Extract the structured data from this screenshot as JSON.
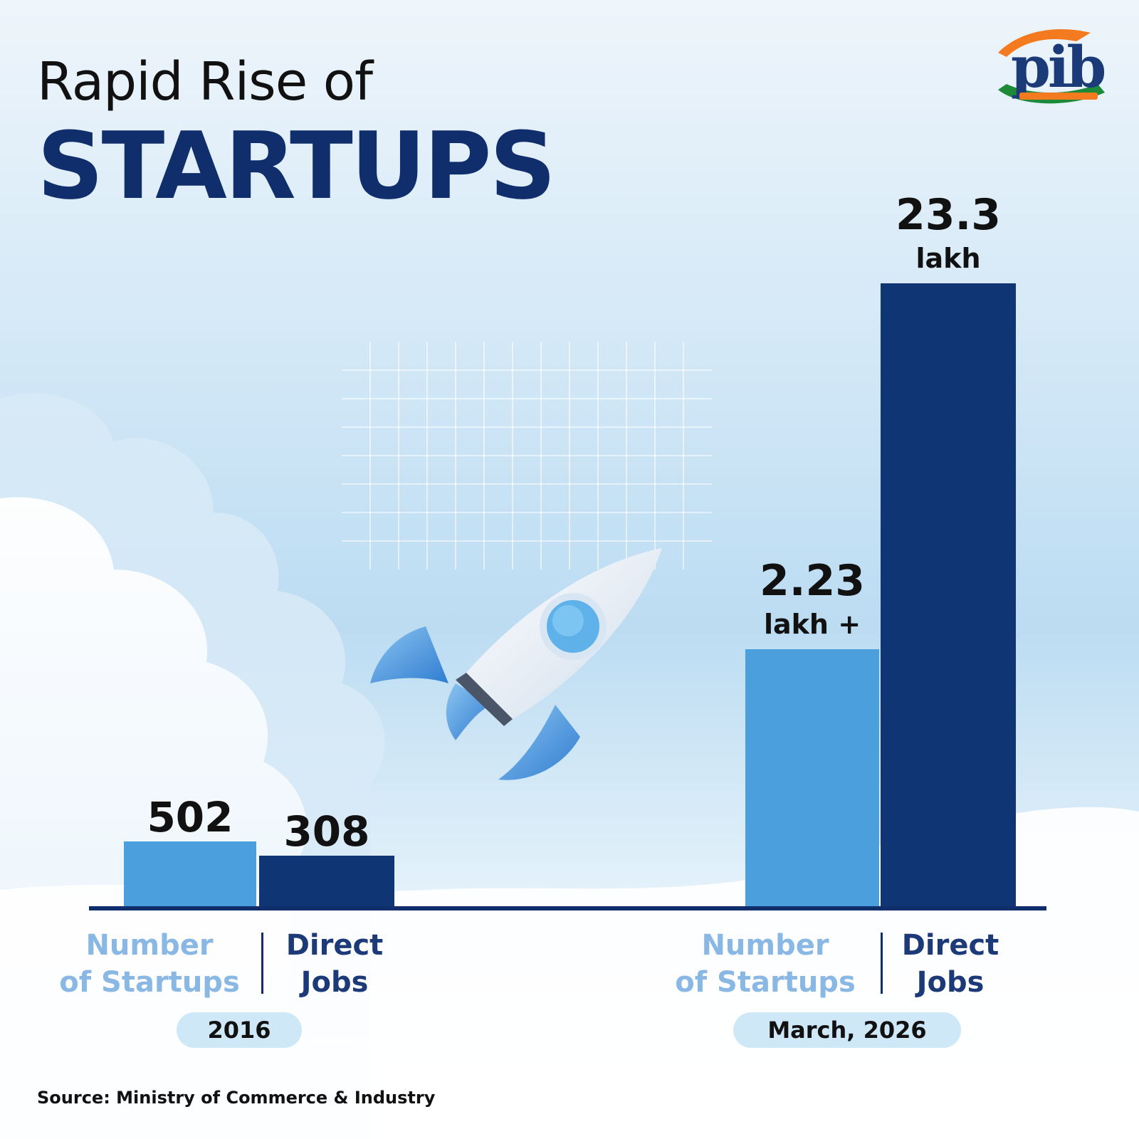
{
  "header": {
    "title_line1": "Rapid Rise of",
    "title_line2": "STARTUPS"
  },
  "logo": {
    "text": "pib",
    "colors": [
      "#f47a20",
      "#ffffff",
      "#1d8a3a",
      "#1a3a78"
    ]
  },
  "chart_data": {
    "type": "bar",
    "groups": [
      "2016",
      "March, 2026"
    ],
    "series": [
      {
        "name": "Number of Startups",
        "color": "#4a9fdc"
      },
      {
        "name": "Direct Jobs",
        "color": "#0f3575"
      }
    ],
    "bars": [
      {
        "group": "2016",
        "series": "Number of Startups",
        "value": 502,
        "label": "502"
      },
      {
        "group": "2016",
        "series": "Direct Jobs",
        "value": 308,
        "label": "308"
      },
      {
        "group": "March, 2026",
        "series": "Number of Startups",
        "value": 223000,
        "label": "2.23",
        "sub_label": "lakh +"
      },
      {
        "group": "March, 2026",
        "series": "Direct Jobs",
        "value": 2330000,
        "label": "23.3",
        "sub_label": "lakh"
      }
    ],
    "axis_labels": {
      "group1_startups": "Number\nof Startups",
      "group1_jobs": "Direct\nJobs",
      "group2_startups": "Number\nof Startups",
      "group2_jobs": "Direct\nJobs"
    },
    "period_labels": [
      "2016",
      "March, 2026"
    ],
    "scale": "not proportional",
    "grid": false,
    "legend": "none"
  },
  "footer": {
    "source": "Source: Ministry of Commerce & Industry"
  }
}
